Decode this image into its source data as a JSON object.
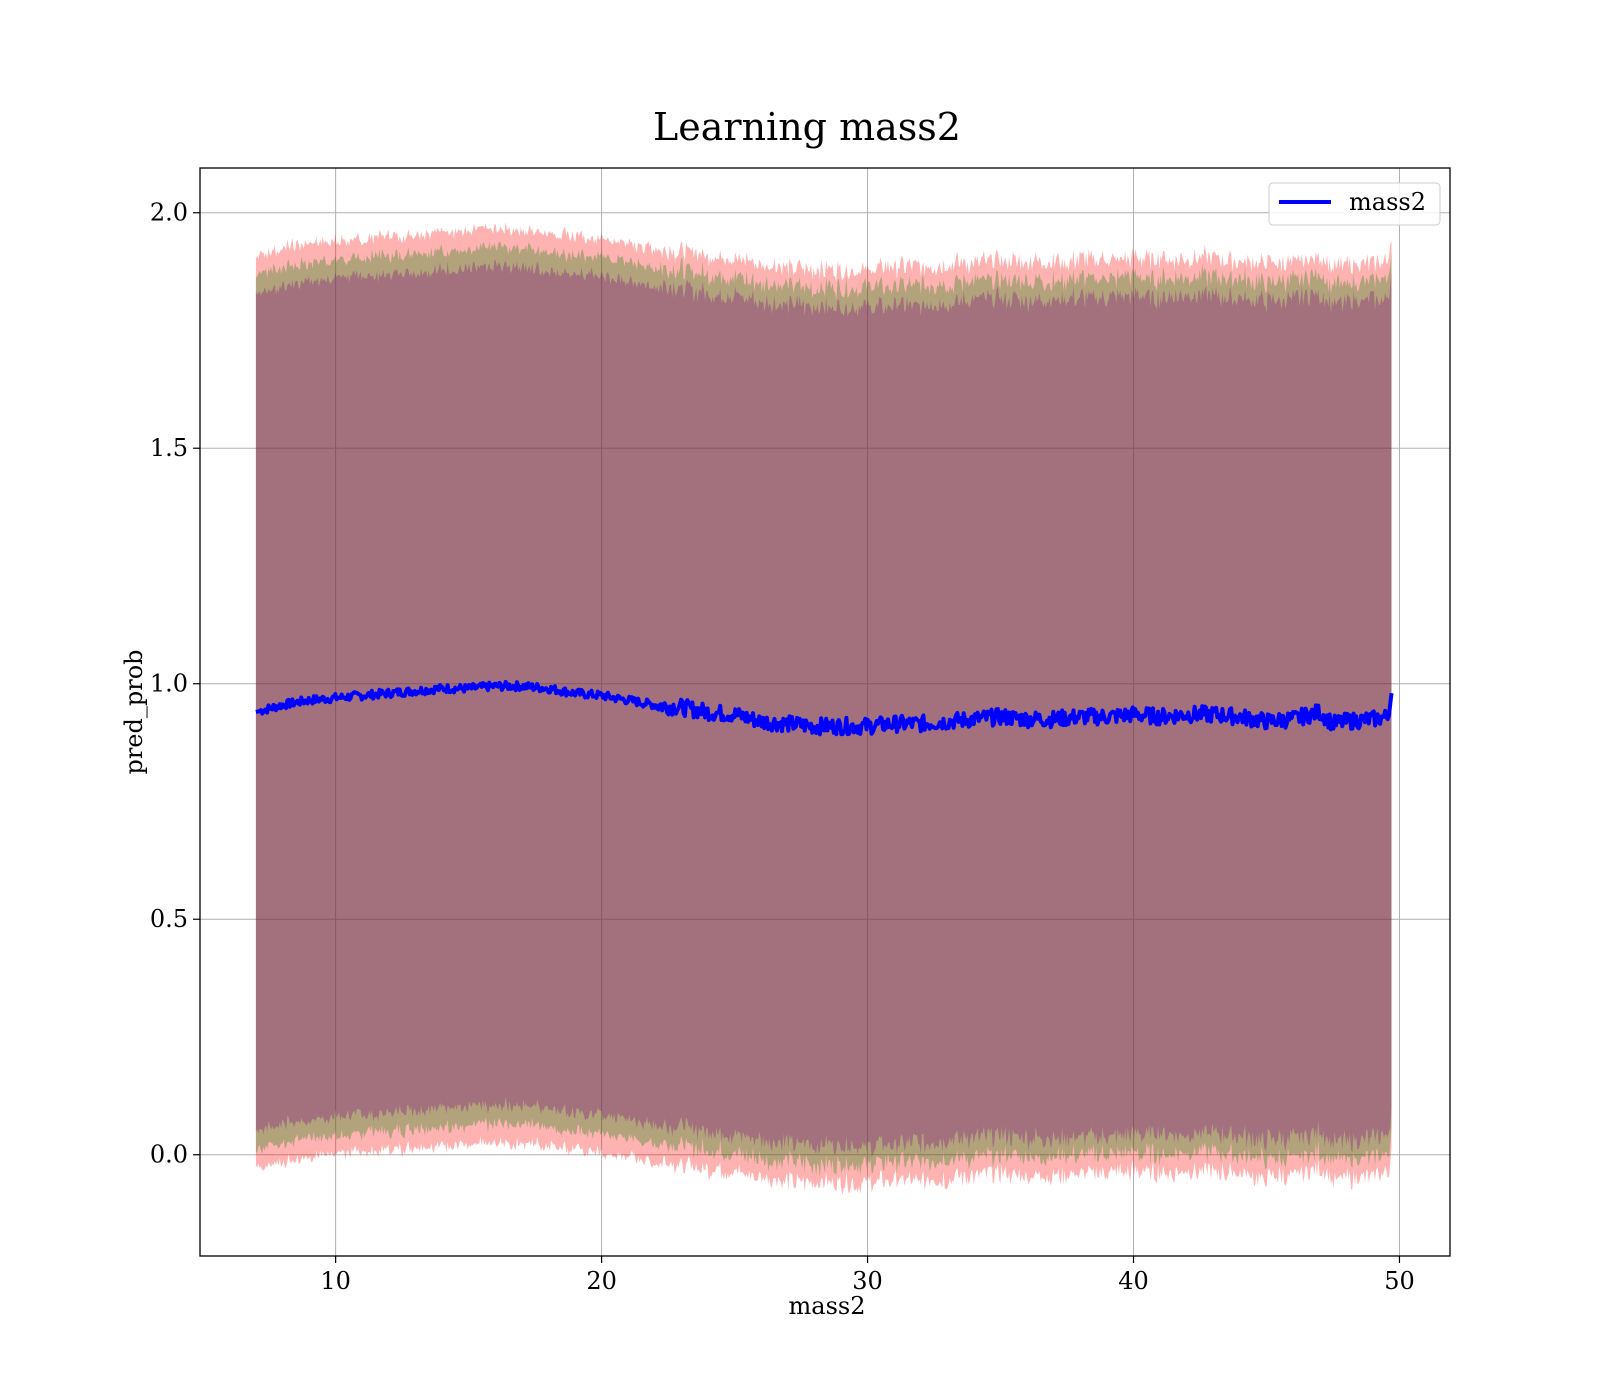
{
  "chart_data": {
    "type": "line",
    "title": "Learning mass2",
    "xlabel": "mass2",
    "ylabel": "pred_prob",
    "xlim": [
      4.9,
      51.9
    ],
    "ylim": [
      -0.215,
      2.095
    ],
    "xticks": [
      10,
      20,
      30,
      40,
      50
    ],
    "yticks": [
      0.0,
      0.5,
      1.0,
      1.5,
      2.0
    ],
    "xtick_labels": [
      "10",
      "20",
      "30",
      "40",
      "50"
    ],
    "ytick_labels": [
      "0.0",
      "0.5",
      "1.0",
      "1.5",
      "2.0"
    ],
    "grid": true,
    "legend_position": "top-right",
    "series": [
      {
        "name": "mass2",
        "color": "#0000ff",
        "x": [
          7.0,
          8,
          9,
          10,
          11,
          12,
          13,
          14,
          15,
          16,
          17,
          18,
          19,
          20,
          21,
          22,
          23,
          24,
          25,
          26,
          27,
          28,
          29,
          30,
          31,
          32,
          33,
          34,
          35,
          36,
          37,
          38,
          39,
          40,
          41,
          42,
          43,
          44,
          45,
          46,
          47,
          47.5,
          48,
          49,
          49.6,
          49.7
        ],
        "values": [
          0.94,
          0.955,
          0.965,
          0.97,
          0.975,
          0.98,
          0.985,
          0.99,
          0.99,
          0.995,
          0.995,
          0.99,
          0.98,
          0.975,
          0.965,
          0.955,
          0.95,
          0.94,
          0.935,
          0.92,
          0.915,
          0.91,
          0.91,
          0.91,
          0.915,
          0.915,
          0.92,
          0.925,
          0.93,
          0.925,
          0.925,
          0.93,
          0.93,
          0.935,
          0.93,
          0.935,
          0.935,
          0.93,
          0.92,
          0.925,
          0.94,
          0.915,
          0.92,
          0.925,
          0.93,
          0.98
        ]
      }
    ],
    "bands": [
      {
        "name": "",
        "color": "#ff0000",
        "opacity": 0.3,
        "upper_offset": 0.97,
        "lower_offset": 0.97
      },
      {
        "name": "",
        "color": "#008000",
        "opacity": 0.3,
        "upper_offset": 0.93,
        "lower_offset": 0.93
      },
      {
        "name": "",
        "color": "#800080",
        "opacity": 0.3,
        "upper_offset": 0.89,
        "lower_offset": 0.89
      }
    ]
  }
}
